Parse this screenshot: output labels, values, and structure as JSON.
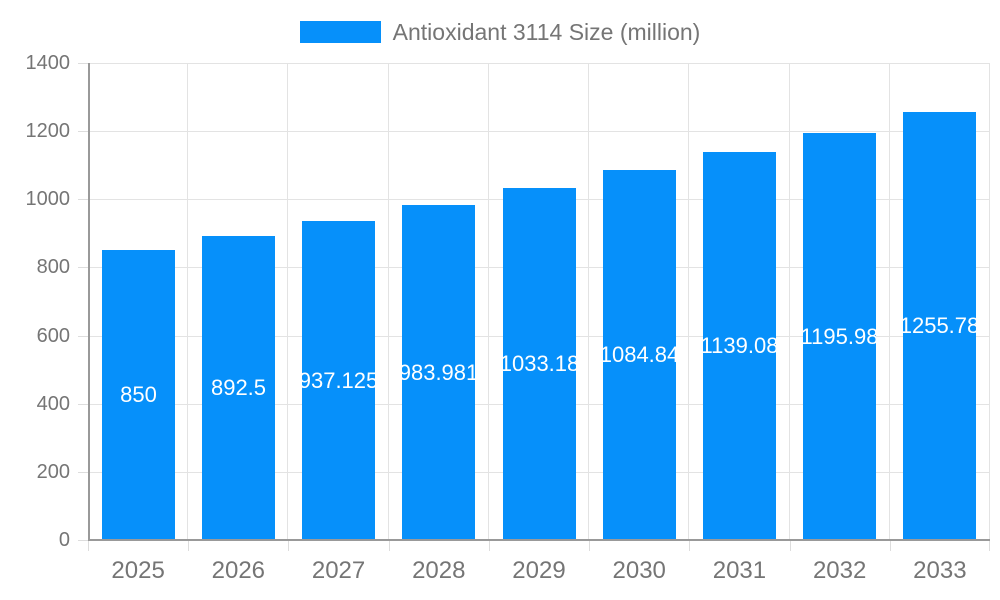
{
  "chart_data": {
    "type": "bar",
    "legend_label": "Antioxidant 3114 Size (million)",
    "legend_position": "top",
    "categories": [
      "2025",
      "2026",
      "2027",
      "2028",
      "2029",
      "2030",
      "2031",
      "2032",
      "2033"
    ],
    "values": [
      850,
      892.5,
      937.125,
      983.98,
      1033.18,
      1084.84,
      1139.08,
      1195.98,
      1255.78
    ],
    "bar_labels": [
      "850",
      "892.5",
      "937.125",
      "983.981",
      "1033.18",
      "1084.84",
      "1139.08",
      "1195.98",
      "1255.78"
    ],
    "ylim": [
      0,
      1400
    ],
    "y_ticks": [
      0,
      200,
      400,
      600,
      800,
      1000,
      1200,
      1400
    ],
    "grid": true,
    "colors": {
      "bar": "#0690fa",
      "axis_line": "#999999",
      "grid_line": "#e3e3e3",
      "tick_mark": "#dddddd",
      "tick_text": "#757575",
      "bar_label_text": "#ffffff",
      "background": "#ffffff"
    }
  }
}
